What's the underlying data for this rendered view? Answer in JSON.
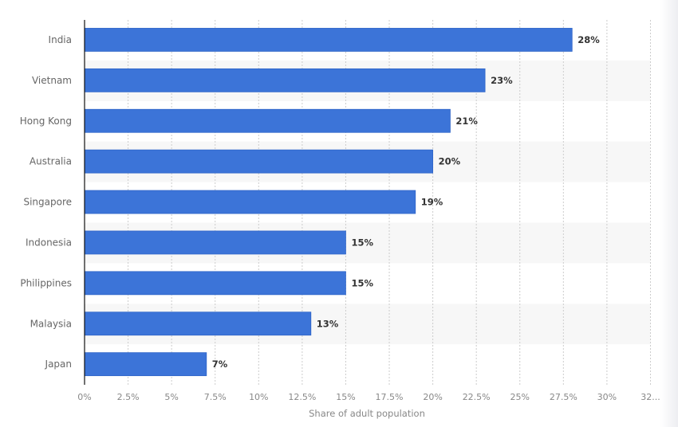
{
  "chart_data": {
    "type": "bar",
    "orientation": "horizontal",
    "categories": [
      "India",
      "Vietnam",
      "Hong Kong",
      "Australia",
      "Singapore",
      "Indonesia",
      "Philippines",
      "Malaysia",
      "Japan"
    ],
    "values": [
      28,
      23,
      21,
      20,
      19,
      15,
      15,
      13,
      7
    ],
    "value_labels": [
      "28%",
      "23%",
      "21%",
      "20%",
      "19%",
      "15%",
      "15%",
      "13%",
      "7%"
    ],
    "xlabel": "Share of adult population",
    "ylabel": "",
    "xlim": [
      0,
      32.5
    ],
    "x_ticks": [
      "0%",
      "2.5%",
      "5%",
      "7.5%",
      "10%",
      "12.5%",
      "15%",
      "17.5%",
      "20%",
      "22.5%",
      "25%",
      "27.5%",
      "30%",
      "32..."
    ],
    "grid": true,
    "alternating_row_bands": true,
    "bar_color": "#3c74d8"
  }
}
